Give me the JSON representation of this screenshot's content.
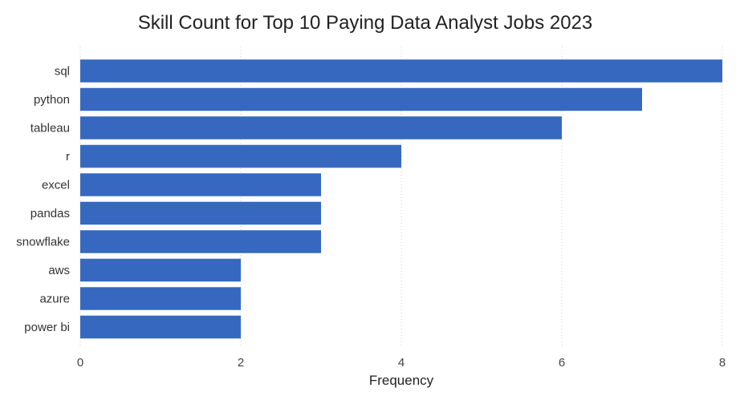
{
  "chart_data": {
    "type": "bar",
    "orientation": "horizontal",
    "title": "Skill Count for Top 10 Paying Data Analyst Jobs 2023",
    "xlabel": "Frequency",
    "ylabel": "",
    "categories": [
      "sql",
      "python",
      "tableau",
      "r",
      "excel",
      "pandas",
      "snowflake",
      "aws",
      "azure",
      "power bi"
    ],
    "values": [
      8,
      7,
      6,
      4,
      3,
      3,
      3,
      2,
      2,
      2
    ],
    "xlim": [
      0,
      8
    ],
    "xticks": [
      "0",
      "2",
      "4",
      "6",
      "8"
    ],
    "bar_color": "#3668bf",
    "grid": "vertical, dotted",
    "legend": "none"
  }
}
